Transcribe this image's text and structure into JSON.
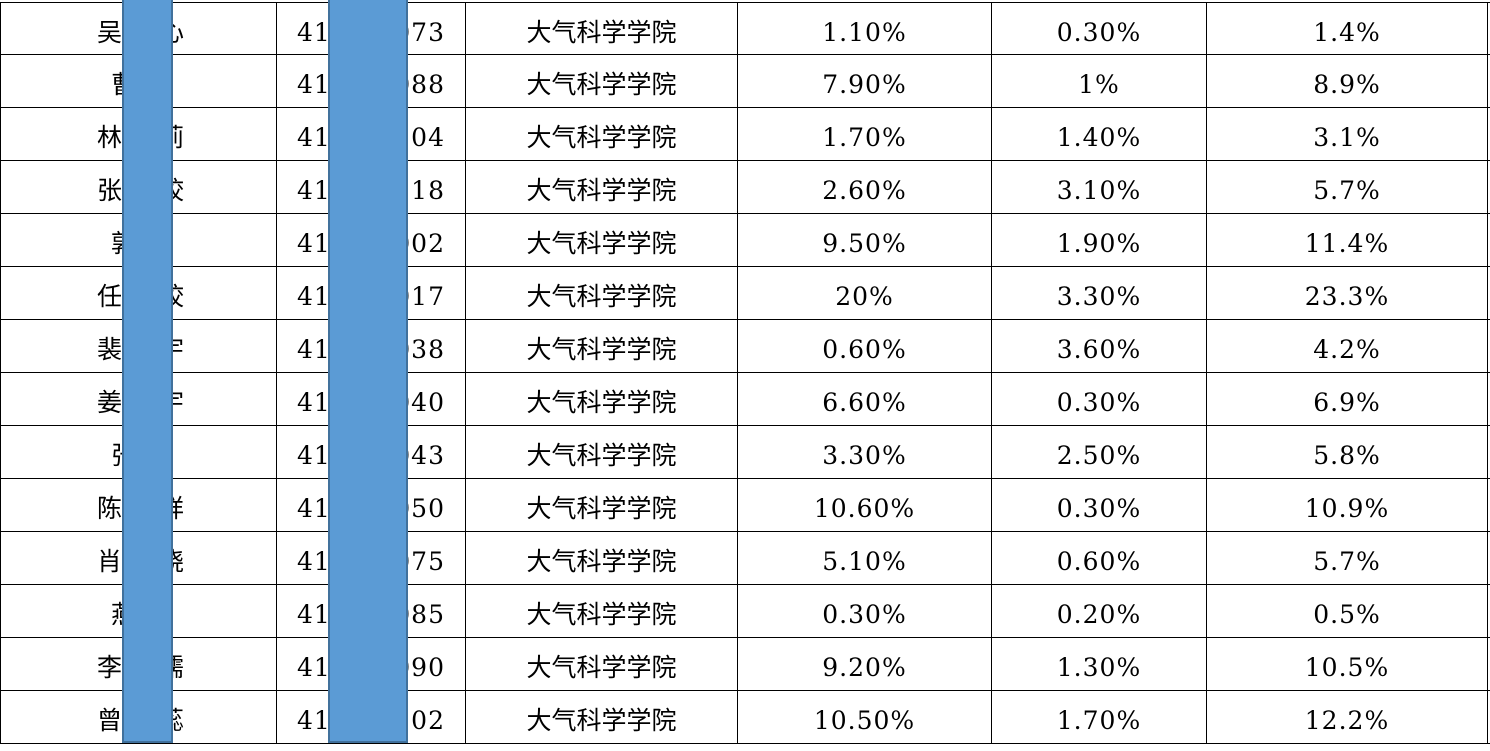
{
  "table": {
    "rows": [
      {
        "name_left": "吴",
        "name_right": "心",
        "id_prefix": "41",
        "id_suffix": "073",
        "college": "大气科学学院",
        "col_a": "1.10%",
        "col_b": "0.30%",
        "total": "1.4%"
      },
      {
        "name_left": "曹",
        "name_right": "",
        "id_prefix": "41",
        "id_suffix": "088",
        "college": "大气科学学院",
        "col_a": "7.90%",
        "col_b": "1%",
        "total": "8.9%"
      },
      {
        "name_left": "林",
        "name_right": "莉",
        "id_prefix": "41",
        "id_suffix": "104",
        "college": "大气科学学院",
        "col_a": "1.70%",
        "col_b": "1.40%",
        "total": "3.1%"
      },
      {
        "name_left": "张",
        "name_right": "姣",
        "id_prefix": "41",
        "id_suffix": "118",
        "college": "大气科学学院",
        "col_a": "2.60%",
        "col_b": "3.10%",
        "total": "5.7%"
      },
      {
        "name_left": "郭",
        "name_right": "",
        "id_prefix": "41",
        "id_suffix": "002",
        "college": "大气科学学院",
        "col_a": "9.50%",
        "col_b": "1.90%",
        "total": "11.4%"
      },
      {
        "name_left": "任",
        "name_right": "姣",
        "id_prefix": "41",
        "id_suffix": "017",
        "college": "大气科学学院",
        "col_a": "20%",
        "col_b": "3.30%",
        "total": "23.3%"
      },
      {
        "name_left": "裴",
        "name_right": "宇",
        "id_prefix": "41",
        "id_suffix": "038",
        "college": "大气科学学院",
        "col_a": "0.60%",
        "col_b": "3.60%",
        "total": "4.2%"
      },
      {
        "name_left": "姜",
        "name_right": "宇",
        "id_prefix": "41",
        "id_suffix": "040",
        "college": "大气科学学院",
        "col_a": "6.60%",
        "col_b": "0.30%",
        "total": "6.9%"
      },
      {
        "name_left": "张",
        "name_right": "",
        "id_prefix": "41",
        "id_suffix": "043",
        "college": "大气科学学院",
        "col_a": "3.30%",
        "col_b": "2.50%",
        "total": "5.8%"
      },
      {
        "name_left": "陈",
        "name_right": "祥",
        "id_prefix": "41",
        "id_suffix": "050",
        "college": "大气科学学院",
        "col_a": "10.60%",
        "col_b": "0.30%",
        "total": "10.9%"
      },
      {
        "name_left": "肖",
        "name_right": "晓",
        "id_prefix": "41",
        "id_suffix": "075",
        "college": "大气科学学院",
        "col_a": "5.10%",
        "col_b": "0.60%",
        "total": "5.7%"
      },
      {
        "name_left": "燕",
        "name_right": "",
        "id_prefix": "41",
        "id_suffix": "085",
        "college": "大气科学学院",
        "col_a": "0.30%",
        "col_b": "0.20%",
        "total": "0.5%"
      },
      {
        "name_left": "李",
        "name_right": "儒",
        "id_prefix": "41",
        "id_suffix": "090",
        "college": "大气科学学院",
        "col_a": "9.20%",
        "col_b": "1.30%",
        "total": "10.5%"
      },
      {
        "name_left": "曾",
        "name_right": "蕊",
        "id_prefix": "41",
        "id_suffix": "102",
        "college": "大气科学学院",
        "col_a": "10.50%",
        "col_b": "1.70%",
        "total": "12.2%"
      }
    ]
  },
  "colors": {
    "redaction_fill": "#5B9BD5",
    "redaction_border": "#41719C"
  }
}
